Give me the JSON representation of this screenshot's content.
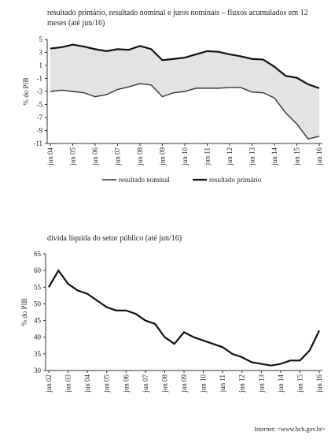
{
  "chart_data": [
    {
      "type": "line",
      "title": "resultado primário, resultado nominal e juros nominais – fluxos acumulados em 12 meses (até jun/16)",
      "y_label": "% do PIB",
      "categories": [
        "jun 04",
        null,
        "jun 05",
        null,
        "jun 06",
        null,
        "jun 07",
        null,
        "jun 08",
        null,
        "jun 09",
        null,
        "jun 10",
        null,
        "jun 11",
        null,
        "jun 12",
        null,
        "jun 13",
        null,
        "jun 14",
        null,
        "jun 15",
        null,
        "jun 16"
      ],
      "series": [
        {
          "name": "resultado nominal",
          "color": "#333333",
          "values": [
            -3.0,
            -2.8,
            -3.0,
            -3.2,
            -3.8,
            -3.5,
            -2.7,
            -2.3,
            -1.8,
            -2.0,
            -3.8,
            -3.2,
            -3.0,
            -2.5,
            -2.5,
            -2.5,
            -2.4,
            -2.4,
            -3.1,
            -3.2,
            -4.0,
            -6.3,
            -8.0,
            -10.3,
            -9.9
          ]
        },
        {
          "name": "resultado primário",
          "color": "#111111",
          "values": [
            3.6,
            3.8,
            4.2,
            3.9,
            3.5,
            3.2,
            3.5,
            3.4,
            4.0,
            3.5,
            1.8,
            2.0,
            2.2,
            2.7,
            3.2,
            3.1,
            2.7,
            2.4,
            2.0,
            1.9,
            0.8,
            -0.6,
            -0.9,
            -1.9,
            -2.5
          ]
        }
      ],
      "fill_between": "#e3e3e3",
      "ylim": [
        -11,
        5
      ],
      "yticks": [
        5,
        3,
        1,
        -1,
        -3,
        -5,
        -7,
        -9,
        -11
      ],
      "legend": "bottom"
    },
    {
      "type": "line",
      "title": "dívida líquida do setor público (até jun/16)",
      "y_label": "% do PIB",
      "categories": [
        "jun 02",
        null,
        "jun 03",
        null,
        "jun 04",
        null,
        "jun 05",
        null,
        "jun 06",
        null,
        "jun 07",
        null,
        "jun 08",
        null,
        "jun 09",
        null,
        "jun 10",
        null,
        "jun 11",
        null,
        "jun 12",
        null,
        "jun 13",
        null,
        "jun 14",
        null,
        "jun 15",
        null,
        "jun 16"
      ],
      "series": [
        {
          "name": null,
          "color": "#111111",
          "values": [
            55,
            60,
            56,
            54,
            53,
            51,
            49,
            48,
            48,
            47,
            45,
            44,
            40,
            38,
            41.5,
            40,
            39,
            38,
            37,
            35,
            34,
            32.5,
            32,
            31.5,
            32,
            33,
            33,
            36,
            42
          ]
        }
      ],
      "ylim": [
        30,
        65
      ],
      "yticks": [
        30,
        35,
        40,
        45,
        50,
        55,
        60,
        65
      ]
    }
  ],
  "source": "Internet: <www.bcb.gov.br>"
}
